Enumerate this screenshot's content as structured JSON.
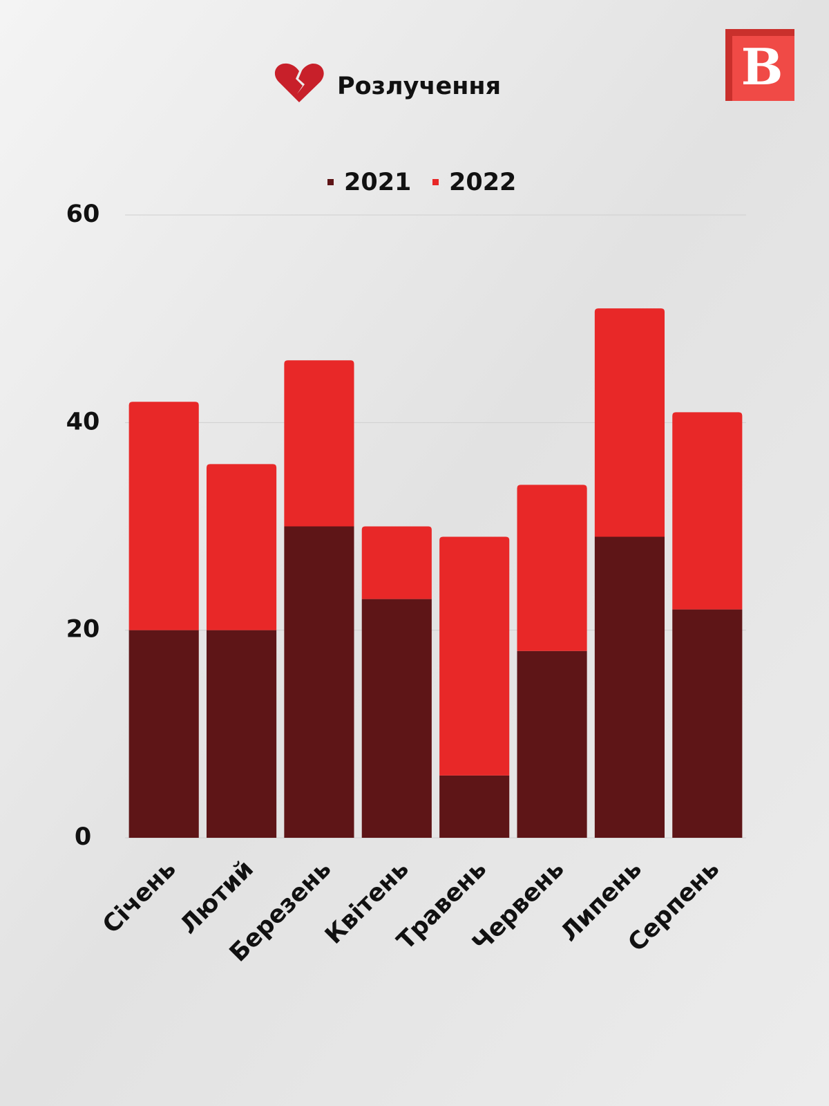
{
  "chart_data": {
    "type": "stacked_bar",
    "title": "Розлучення",
    "categories": [
      "Січень",
      "Лютий",
      "Березень",
      "Квітень",
      "Травень",
      "Червень",
      "Липень",
      "Серпень"
    ],
    "series": [
      {
        "name": "2021",
        "color": "#5e1517",
        "values": [
          20,
          20,
          30,
          23,
          6,
          18,
          29,
          22
        ]
      },
      {
        "name": "2022",
        "color": "#e82828",
        "values": [
          22,
          16,
          16,
          7,
          23,
          16,
          22,
          19
        ]
      }
    ],
    "ylim": [
      0,
      60
    ],
    "yticks": [
      0,
      20,
      40,
      60
    ],
    "grid": true
  }
}
